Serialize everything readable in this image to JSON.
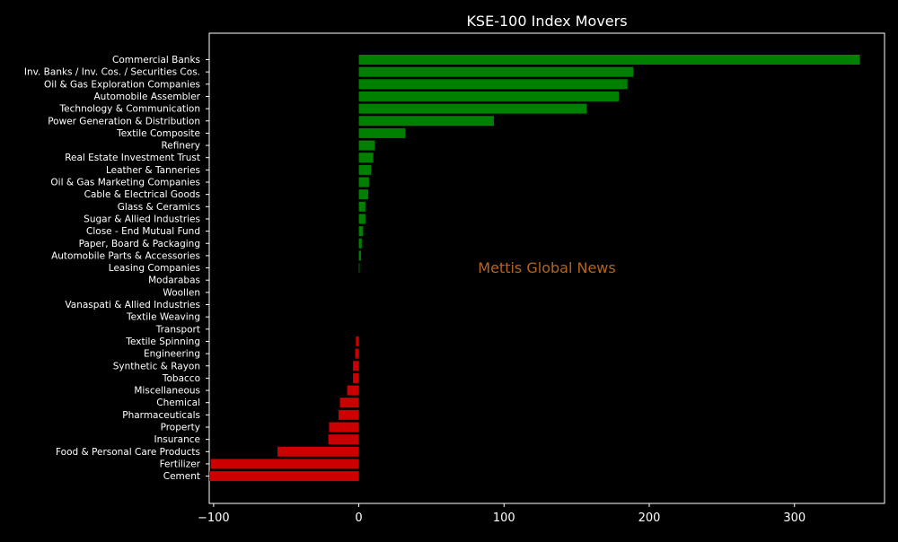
{
  "chart_data": {
    "type": "bar",
    "orientation": "horizontal",
    "title": "KSE-100 Index Movers",
    "watermark": "Mettis Global News",
    "xlabel": "",
    "ylabel": "",
    "xlim": [
      -103,
      362
    ],
    "xticks": [
      -100,
      0,
      100,
      200,
      300
    ],
    "xtick_labels": [
      "−100",
      "0",
      "100",
      "200",
      "300"
    ],
    "grid": false,
    "legend": "none",
    "colors": {
      "positive": "#008000",
      "negative": "#cc0000",
      "background": "#000000",
      "text": "#ffffff",
      "watermark": "#b5651d"
    },
    "categories": [
      "Commercial Banks",
      "Inv. Banks / Inv. Cos. / Securities Cos.",
      "Oil & Gas Exploration Companies",
      "Automobile Assembler",
      "Technology & Communication",
      "Power Generation & Distribution",
      "Textile Composite",
      "Refinery",
      "Real Estate Investment Trust",
      "Leather & Tanneries",
      "Oil & Gas Marketing Companies",
      "Cable & Electrical Goods",
      "Glass & Ceramics",
      "Sugar & Allied Industries",
      "Close - End Mutual Fund",
      "Paper, Board & Packaging",
      "Automobile Parts & Accessories",
      "Leasing Companies",
      "Modarabas",
      "Woollen",
      "Vanaspati & Allied Industries",
      "Textile Weaving",
      "Transport",
      "Textile Spinning",
      "Engineering",
      "Synthetic & Rayon",
      "Tobacco",
      "Miscellaneous",
      "Chemical",
      "Pharmaceuticals",
      "Property",
      "Insurance",
      "Food & Personal Care Products",
      "Fertilizer",
      "Cement"
    ],
    "values": [
      345,
      189,
      185,
      179,
      157,
      93,
      32,
      11,
      10,
      8.5,
      7,
      6.5,
      4.5,
      4.5,
      3,
      2,
      1.5,
      0.5,
      0,
      0,
      0,
      0,
      0,
      -2,
      -2.5,
      -4,
      -4,
      -8,
      -13,
      -14,
      -20.5,
      -21,
      -56,
      -102,
      -103
    ]
  }
}
